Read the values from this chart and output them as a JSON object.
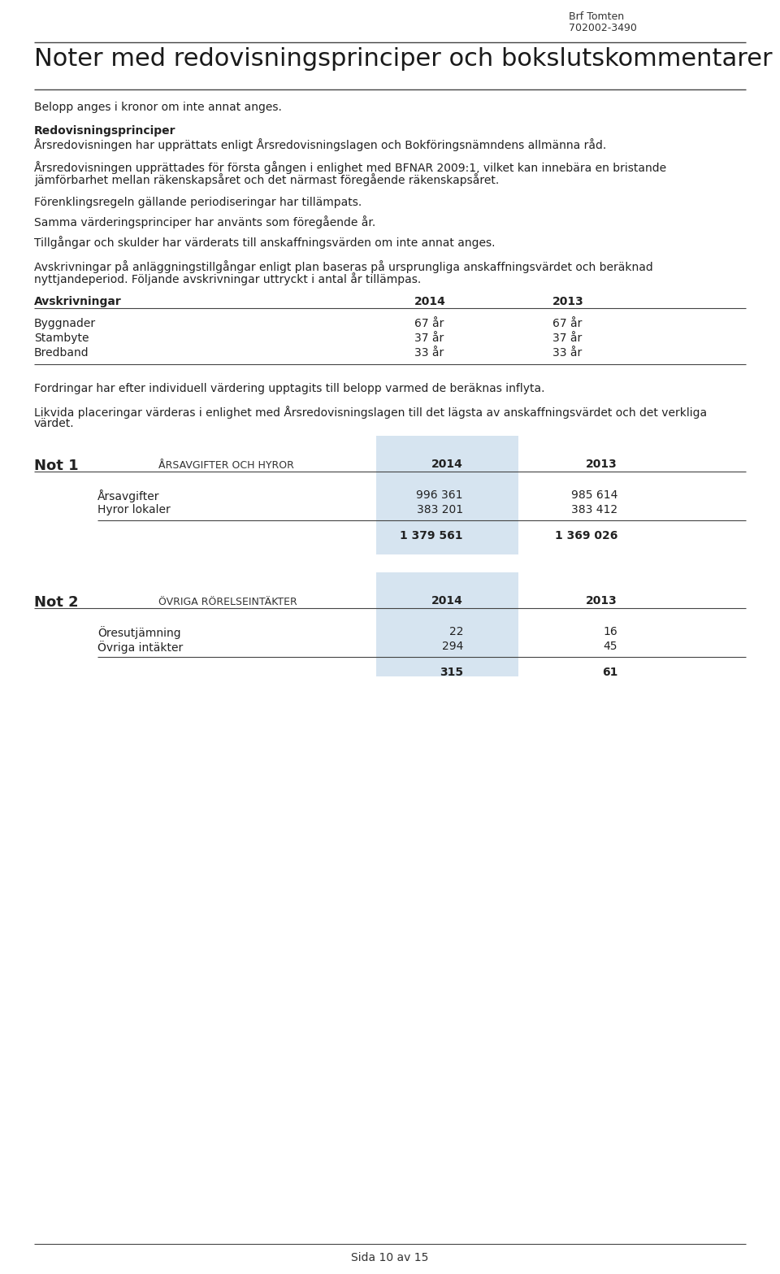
{
  "header_company": "Brf Tomten",
  "header_org": "702002-3490",
  "page_title": "Noter med redovisningsprinciper och bokslutskommentarer",
  "intro_line": "Belopp anges i kronor om inte annat anges.",
  "section_redovisning_title": "Redovisningsprinciper",
  "section_redovisning_text": "Årsredovisningen har upprättats enligt Årsredovisningslagen och Bokföringsnämndens allmänna råd.",
  "para1_line1": "Årsredovisningen upprättades för första gången i enlighet med BFNAR 2009:1, vilket kan innebära en bristande",
  "para1_line2": "jämförbarhet mellan räkenskapsåret och det närmast föregående räkenskapsåret.",
  "para2": "Förenklingsregeln gällande periodiseringar har tillämpats.",
  "para3": "Samma värderingsprinciper har använts som föregående år.",
  "para4": "Tillgångar och skulder har värderats till anskaffningsvärden om inte annat anges.",
  "para5_line1": "Avskrivningar på anläggningstillgångar enligt plan baseras på ursprungliga anskaffningsvärdet och beräknad",
  "para5_line2": "nyttjandeperiod. Följande avskrivningar uttryckt i antal år tillämpas.",
  "avskrivning_rows": [
    [
      "Byggnader",
      "67 år",
      "67 år"
    ],
    [
      "Stambyte",
      "37 år",
      "37 år"
    ],
    [
      "Bredband",
      "33 år",
      "33 år"
    ]
  ],
  "para6": "Fordringar har efter individuell värdering upptagits till belopp varmed de beräknas inflyta.",
  "para7_line1": "Likvida placeringar värderas i enlighet med Årsredovisningslagen till det lägsta av anskaffningsvärdet och det verkliga",
  "para7_line2": "värdet.",
  "not1_label": "Not 1",
  "not1_title": "ÅRSAVGIFTER OCH HYROR",
  "not1_col2014": "2014",
  "not1_col2013": "2013",
  "not1_rows": [
    [
      "Årsavgifter",
      "996 361",
      "985 614"
    ],
    [
      "Hyror lokaler",
      "383 201",
      "383 412"
    ]
  ],
  "not1_total": [
    "",
    "1 379 561",
    "1 369 026"
  ],
  "not2_label": "Not 2",
  "not2_title": "ÖVRIGA RÖRELSEINTÄKTER",
  "not2_col2014": "2014",
  "not2_col2013": "2013",
  "not2_rows": [
    [
      "Öresutjämning",
      "22",
      "16"
    ],
    [
      "Övriga intäkter",
      "294",
      "45"
    ]
  ],
  "not2_total": [
    "",
    "315",
    "61"
  ],
  "footer": "Sida 10 av 15",
  "bg_color": "#ffffff",
  "text_color": "#222222",
  "light_blue": "#d6e4f0",
  "line_color": "#444444"
}
